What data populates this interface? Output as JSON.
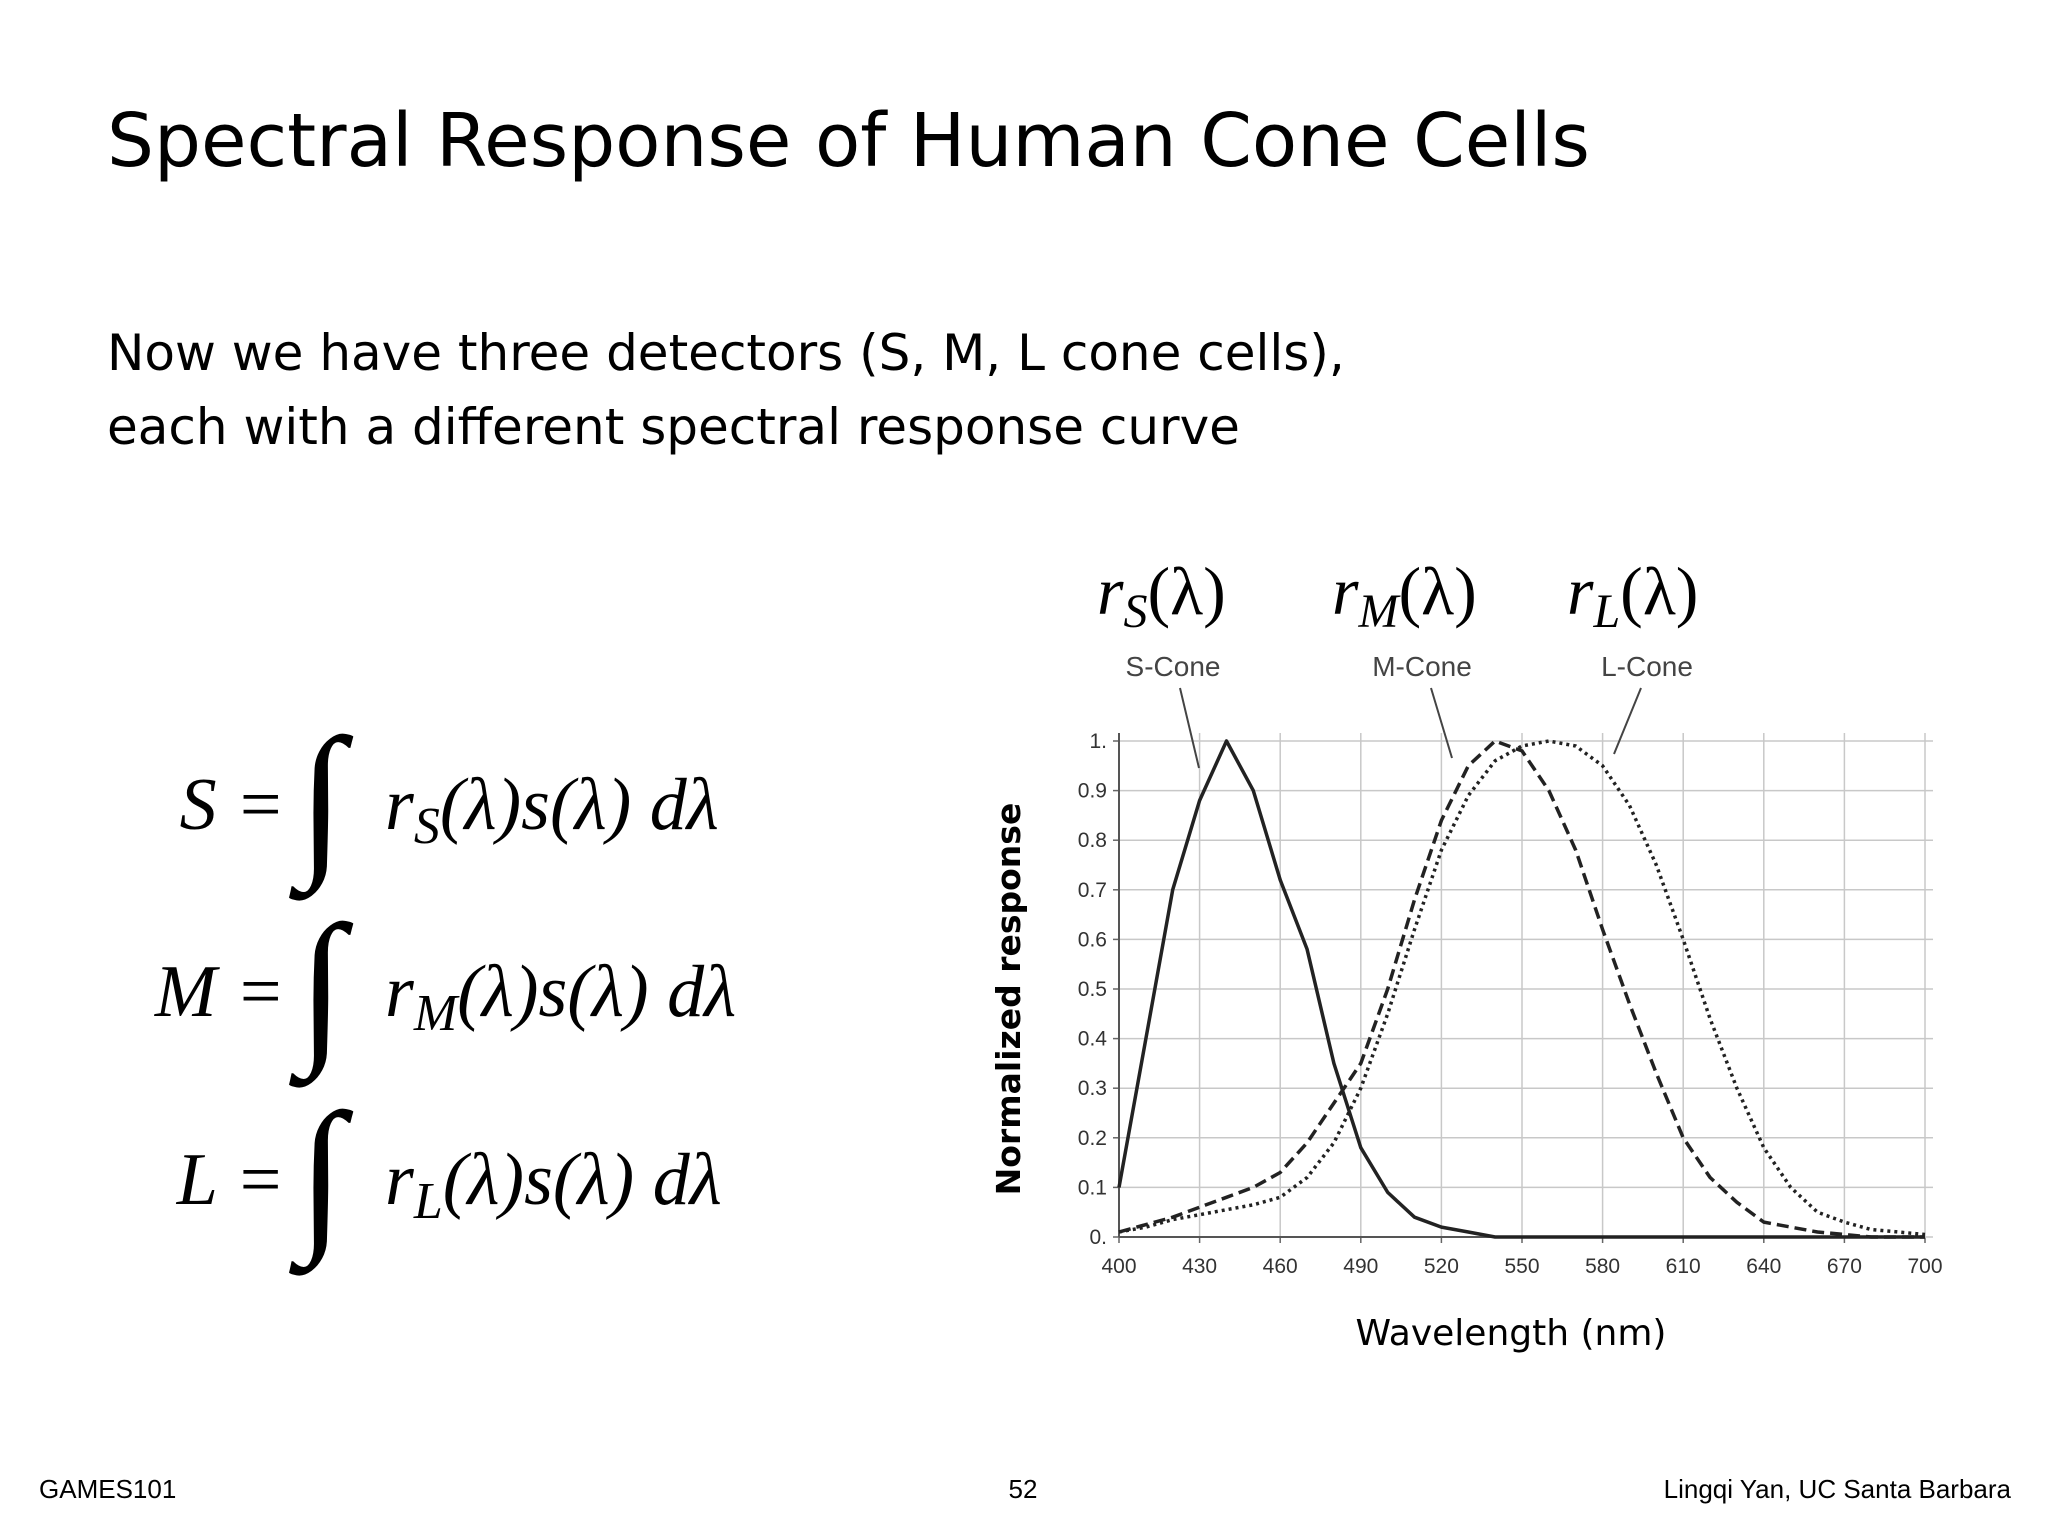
{
  "title": "Spectral Response of Human Cone Cells",
  "body": [
    "Now we have three detectors (S, M, L cone cells),",
    "each with a different spectral response curve"
  ],
  "equations": [
    {
      "lhs": "S =",
      "integral": "∫",
      "base": "r",
      "sub": "S",
      "rest": "(λ)s(λ) dλ"
    },
    {
      "lhs": "M =",
      "integral": "∫",
      "base": "r",
      "sub": "M",
      "rest": "(λ)s(λ) dλ"
    },
    {
      "lhs": "L =",
      "integral": "∫",
      "base": "r",
      "sub": "L",
      "rest": "(λ)s(λ) dλ"
    }
  ],
  "response_labels": [
    {
      "base": "r",
      "sub": "S",
      "arg": "(λ)"
    },
    {
      "base": "r",
      "sub": "M",
      "arg": "(λ)"
    },
    {
      "base": "r",
      "sub": "L",
      "arg": "(λ)"
    }
  ],
  "chart_data": {
    "type": "line",
    "xlabel": "Wavelength (nm)",
    "ylabel": "Normalized response",
    "x": [
      400,
      410,
      420,
      430,
      440,
      450,
      460,
      470,
      480,
      490,
      500,
      510,
      520,
      530,
      540,
      550,
      560,
      570,
      580,
      590,
      600,
      610,
      620,
      630,
      640,
      650,
      660,
      670,
      680,
      690,
      700
    ],
    "series": [
      {
        "name": "S-Cone",
        "color": "#222222",
        "dash": "solid",
        "values": [
          0.1,
          0.4,
          0.7,
          0.88,
          1.0,
          0.9,
          0.72,
          0.58,
          0.35,
          0.18,
          0.09,
          0.04,
          0.02,
          0.01,
          0,
          0,
          0,
          0,
          0,
          0,
          0,
          0,
          0,
          0,
          0,
          0,
          0,
          0,
          0,
          0,
          0
        ]
      },
      {
        "name": "M-Cone",
        "color": "#222222",
        "dash": "dashed",
        "values": [
          0.01,
          0.025,
          0.04,
          0.06,
          0.08,
          0.1,
          0.13,
          0.19,
          0.27,
          0.35,
          0.5,
          0.68,
          0.84,
          0.95,
          1.0,
          0.98,
          0.9,
          0.78,
          0.62,
          0.47,
          0.33,
          0.2,
          0.12,
          0.07,
          0.03,
          0.02,
          0.01,
          0.005,
          0,
          0,
          0
        ]
      },
      {
        "name": "L-Cone",
        "color": "#222222",
        "dash": "dotted",
        "values": [
          0.01,
          0.02,
          0.035,
          0.045,
          0.055,
          0.065,
          0.08,
          0.12,
          0.19,
          0.3,
          0.45,
          0.62,
          0.78,
          0.89,
          0.96,
          0.99,
          1.0,
          0.99,
          0.95,
          0.87,
          0.75,
          0.6,
          0.44,
          0.3,
          0.18,
          0.1,
          0.05,
          0.03,
          0.015,
          0.01,
          0.005
        ]
      }
    ],
    "xlim": [
      400,
      700
    ],
    "ylim": [
      0,
      1
    ],
    "xticks": [
      400,
      430,
      460,
      490,
      520,
      550,
      580,
      610,
      640,
      670,
      700
    ],
    "yticks": [
      {
        "value": 0,
        "label": "0."
      },
      0.1,
      0.2,
      0.3,
      0.4,
      0.5,
      0.6,
      0.7,
      0.8,
      0.9,
      {
        "value": 1,
        "label": "1."
      }
    ],
    "grid": true
  },
  "footer": {
    "left": "GAMES101",
    "center": "52",
    "right": "Lingqi Yan, UC Santa Barbara"
  }
}
